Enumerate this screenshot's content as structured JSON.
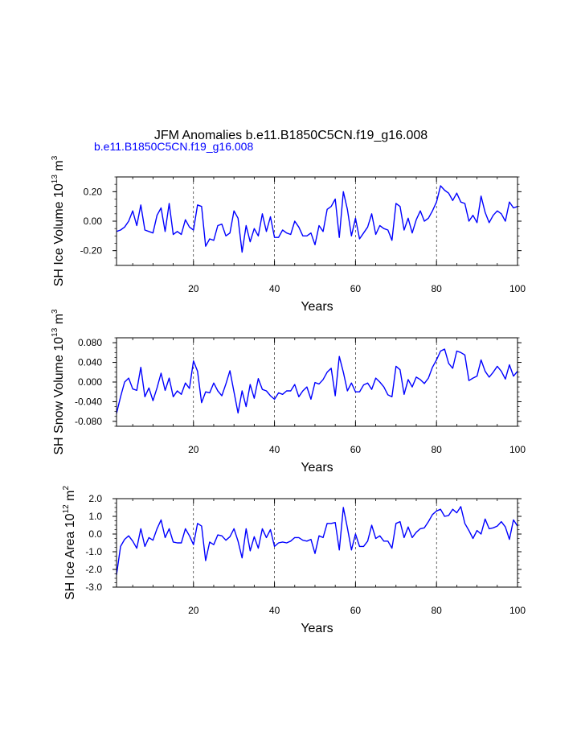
{
  "figure": {
    "title": "JFM Anomalies b.e11.B1850C5CN.f19_g16.008",
    "subtitle": "b.e11.B1850C5CN.f19_g16.008",
    "line_color": "#0000ff",
    "grid_color": "#000000"
  },
  "chart_data": [
    {
      "type": "line",
      "name": "SH Ice Volume",
      "ylabel_parts": [
        "SH Ice Volume 10",
        "13",
        " m",
        "3"
      ],
      "xlabel": "Years",
      "xlim": [
        1,
        100
      ],
      "ylim": [
        -0.3,
        0.3
      ],
      "xticks": [
        20,
        40,
        60,
        80,
        100
      ],
      "yticks": [
        -0.2,
        0.0,
        0.2
      ],
      "ytick_labels": [
        "-0.20",
        "0.00",
        "0.20"
      ],
      "dashed_x": [
        20,
        40,
        60,
        80
      ],
      "values": [
        -0.07,
        -0.06,
        -0.04,
        0.0,
        0.07,
        -0.03,
        0.11,
        -0.06,
        -0.07,
        -0.08,
        0.04,
        0.09,
        -0.07,
        0.12,
        -0.09,
        -0.07,
        -0.09,
        0.01,
        -0.04,
        -0.06,
        0.11,
        0.1,
        -0.17,
        -0.12,
        -0.13,
        -0.03,
        -0.02,
        -0.1,
        -0.08,
        0.07,
        0.02,
        -0.21,
        -0.03,
        -0.14,
        -0.05,
        -0.1,
        0.05,
        -0.07,
        0.03,
        -0.11,
        -0.11,
        -0.06,
        -0.08,
        -0.09,
        0.0,
        -0.04,
        -0.1,
        -0.1,
        -0.08,
        -0.16,
        -0.03,
        -0.07,
        0.08,
        0.1,
        0.15,
        -0.11,
        0.2,
        0.08,
        -0.1,
        0.02,
        -0.12,
        -0.08,
        -0.04,
        0.05,
        -0.09,
        -0.03,
        -0.05,
        -0.06,
        -0.13,
        0.12,
        0.1,
        -0.06,
        0.02,
        -0.08,
        0.01,
        0.07,
        0.0,
        0.02,
        0.07,
        0.13,
        0.24,
        0.21,
        0.19,
        0.14,
        0.19,
        0.13,
        0.12,
        0.0,
        0.04,
        -0.01,
        0.17,
        0.06,
        -0.01,
        0.04,
        0.07,
        0.05,
        0.0,
        0.13,
        0.09,
        0.1
      ]
    },
    {
      "type": "line",
      "name": "SH Snow Volume",
      "ylabel_parts": [
        "SH Snow Volume 10",
        "13",
        " m",
        "3"
      ],
      "xlabel": "Years",
      "xlim": [
        1,
        100
      ],
      "ylim": [
        -0.09,
        0.09
      ],
      "xticks": [
        20,
        40,
        60,
        80,
        100
      ],
      "yticks": [
        -0.08,
        -0.04,
        0.0,
        0.04,
        0.08
      ],
      "ytick_labels": [
        "-0.080",
        "-0.040",
        "0.000",
        "0.040",
        "0.080"
      ],
      "dashed_x": [
        20,
        40,
        60,
        80
      ],
      "values": [
        -0.064,
        -0.03,
        0.0,
        0.008,
        -0.014,
        -0.017,
        0.03,
        -0.03,
        -0.012,
        -0.038,
        -0.012,
        0.018,
        -0.017,
        0.008,
        -0.03,
        -0.018,
        -0.025,
        -0.002,
        -0.013,
        0.043,
        0.022,
        -0.042,
        -0.02,
        -0.022,
        -0.002,
        -0.018,
        -0.028,
        -0.004,
        0.023,
        -0.02,
        -0.063,
        -0.018,
        -0.05,
        -0.005,
        -0.033,
        0.007,
        -0.015,
        -0.018,
        -0.028,
        -0.035,
        -0.022,
        -0.025,
        -0.018,
        -0.018,
        -0.005,
        -0.03,
        -0.018,
        -0.01,
        -0.035,
        -0.001,
        -0.004,
        0.005,
        0.02,
        0.028,
        -0.028,
        0.052,
        0.02,
        -0.018,
        -0.002,
        -0.02,
        -0.02,
        -0.006,
        -0.002,
        -0.015,
        0.008,
        0.0,
        -0.01,
        -0.026,
        -0.03,
        0.032,
        0.025,
        -0.025,
        0.005,
        -0.01,
        0.01,
        0.005,
        -0.003,
        0.008,
        0.03,
        0.045,
        0.063,
        0.067,
        0.038,
        0.028,
        0.063,
        0.06,
        0.055,
        0.003,
        0.008,
        0.012,
        0.045,
        0.022,
        0.01,
        0.02,
        0.032,
        0.022,
        0.006,
        0.035,
        0.012,
        0.022
      ]
    },
    {
      "type": "line",
      "name": "SH Ice Area",
      "ylabel_parts": [
        "SH Ice Area 10",
        "12",
        " m",
        "2"
      ],
      "xlabel": "Years",
      "xlim": [
        1,
        100
      ],
      "ylim": [
        -3.0,
        2.0
      ],
      "xticks": [
        20,
        40,
        60,
        80,
        100
      ],
      "yticks": [
        -3.0,
        -2.0,
        -1.0,
        0.0,
        1.0,
        2.0
      ],
      "ytick_labels": [
        "-3.0",
        "-2.0",
        "-1.0",
        "0.0",
        "1.0",
        "2.0"
      ],
      "dashed_x": [
        20,
        40,
        60,
        80
      ],
      "values": [
        -2.3,
        -0.7,
        -0.3,
        -0.1,
        -0.4,
        -0.8,
        0.3,
        -0.7,
        -0.2,
        -0.35,
        0.3,
        0.8,
        -0.2,
        0.3,
        -0.45,
        -0.5,
        -0.5,
        0.3,
        -0.1,
        -0.6,
        0.6,
        0.45,
        -1.5,
        -0.45,
        -0.6,
        -0.05,
        -0.1,
        -0.35,
        -0.15,
        0.3,
        -0.4,
        -1.35,
        0.3,
        -0.95,
        -0.15,
        -0.8,
        0.3,
        -0.2,
        0.25,
        -0.7,
        -0.5,
        -0.45,
        -0.5,
        -0.4,
        -0.2,
        -0.2,
        -0.35,
        -0.4,
        -0.3,
        -1.1,
        -0.1,
        -0.2,
        0.6,
        0.6,
        0.65,
        -0.9,
        1.5,
        0.35,
        -0.9,
        0.0,
        -0.7,
        -0.7,
        -0.4,
        0.5,
        -0.25,
        -0.1,
        -0.4,
        -0.4,
        -0.8,
        0.6,
        0.7,
        -0.2,
        0.4,
        -0.2,
        0.1,
        0.3,
        0.35,
        0.7,
        1.1,
        1.3,
        1.4,
        1.0,
        1.05,
        1.4,
        1.2,
        1.55,
        0.6,
        0.2,
        -0.25,
        0.2,
        0.0,
        0.85,
        0.3,
        0.35,
        0.45,
        0.7,
        0.4,
        -0.3,
        0.8,
        0.45
      ]
    }
  ]
}
